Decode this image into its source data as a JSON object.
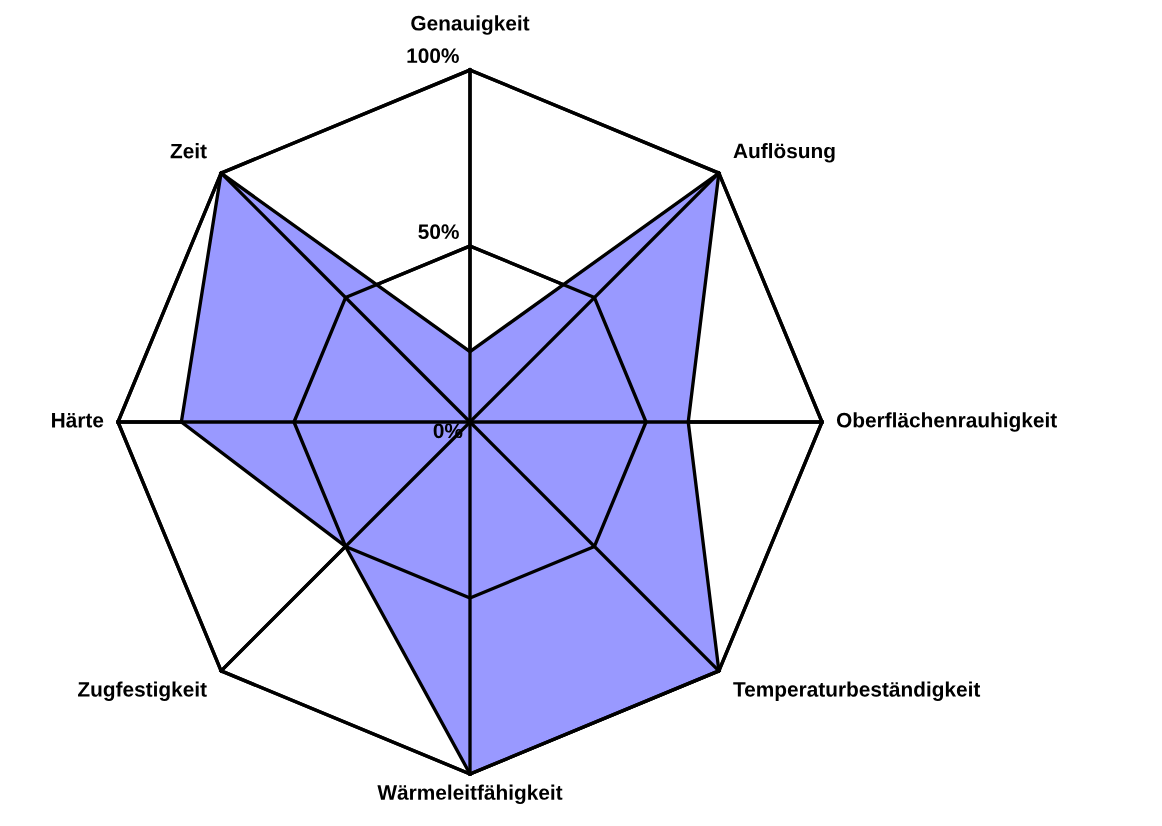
{
  "chart_data": {
    "type": "radar",
    "categories": [
      "Genauigkeit",
      "Auflösung",
      "Oberflächenrauhigkeit",
      "Temperaturbeständigkeit",
      "Wärmeleitfähigkeit",
      "Zugfestigkeit",
      "Härte",
      "Zeit"
    ],
    "series": [
      {
        "color": "#9999ff",
        "values": [
          20,
          100,
          62,
          100,
          100,
          50,
          82,
          100
        ]
      }
    ],
    "ylim": [
      0,
      100
    ],
    "yticks": [
      {
        "value": 0,
        "label": "0%"
      },
      {
        "value": 50,
        "label": "50%"
      },
      {
        "value": 100,
        "label": "100%"
      }
    ],
    "grid": true
  }
}
